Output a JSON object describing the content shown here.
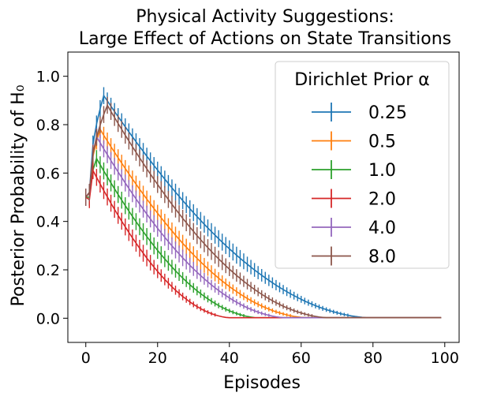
{
  "chart_data": {
    "type": "line",
    "title_lines": [
      "Physical Activity Suggestions:",
      "Large Effect of Actions on State Transitions"
    ],
    "xlabel": "Episodes",
    "ylabel": "Posterior Probability of H₀",
    "xlim": [
      -5,
      104
    ],
    "ylim": [
      -0.1,
      1.1
    ],
    "xticks": [
      0,
      20,
      40,
      60,
      80,
      100
    ],
    "yticks": [
      0.0,
      0.2,
      0.4,
      0.6,
      0.8,
      1.0
    ],
    "ytick_labels": [
      "0.0",
      "0.2",
      "0.4",
      "0.6",
      "0.8",
      "1.0"
    ],
    "legend": {
      "title": "Dirichlet Prior α",
      "position": "upper right"
    },
    "series": [
      {
        "name": "0.25",
        "color": "#1f77b4",
        "peak_x": 5,
        "peak_y": 0.92,
        "start_y": 0.5,
        "first_y": 0.52,
        "zero_x": 82,
        "err": 0.035
      },
      {
        "name": "0.5",
        "color": "#ff7f0e",
        "peak_x": 4,
        "peak_y": 0.78,
        "start_y": 0.5,
        "first_y": 0.52,
        "zero_x": 64,
        "err": 0.035
      },
      {
        "name": "1.0",
        "color": "#2ca02c",
        "peak_x": 3,
        "peak_y": 0.66,
        "start_y": 0.5,
        "first_y": 0.5,
        "zero_x": 50,
        "err": 0.035
      },
      {
        "name": "2.0",
        "color": "#d62728",
        "peak_x": 2,
        "peak_y": 0.61,
        "start_y": 0.5,
        "first_y": 0.49,
        "zero_x": 42,
        "err": 0.035
      },
      {
        "name": "4.0",
        "color": "#9467bd",
        "peak_x": 3,
        "peak_y": 0.75,
        "start_y": 0.5,
        "first_y": 0.52,
        "zero_x": 58,
        "err": 0.035
      },
      {
        "name": "8.0",
        "color": "#8c564b",
        "peak_x": 6,
        "peak_y": 0.88,
        "start_y": 0.5,
        "first_y": 0.52,
        "zero_x": 70,
        "err": 0.035
      }
    ],
    "episodes": 100
  }
}
